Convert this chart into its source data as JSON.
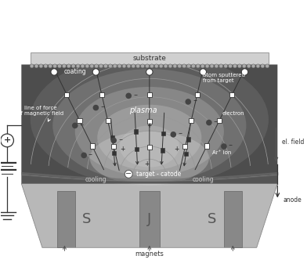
{
  "substrate_label": "substrate",
  "coating_label": "coating",
  "plasma_label": "plasma",
  "target_label": "target - catode",
  "cooling_label": "cooling",
  "magnets_label": "magnets",
  "anode_label": "anode",
  "electron_label": "electron",
  "el_field_label": "el. field",
  "ar_ion_label": "Ar⁺ ion",
  "atom_label": "atom sputtered\nfrom target",
  "line_of_force_label": "line of force\nof magnetic field",
  "S_label": "S",
  "J_label": "J",
  "fig_width": 3.92,
  "fig_height": 3.36,
  "xlim": [
    0,
    10
  ],
  "ylim": [
    0,
    8.6
  ]
}
